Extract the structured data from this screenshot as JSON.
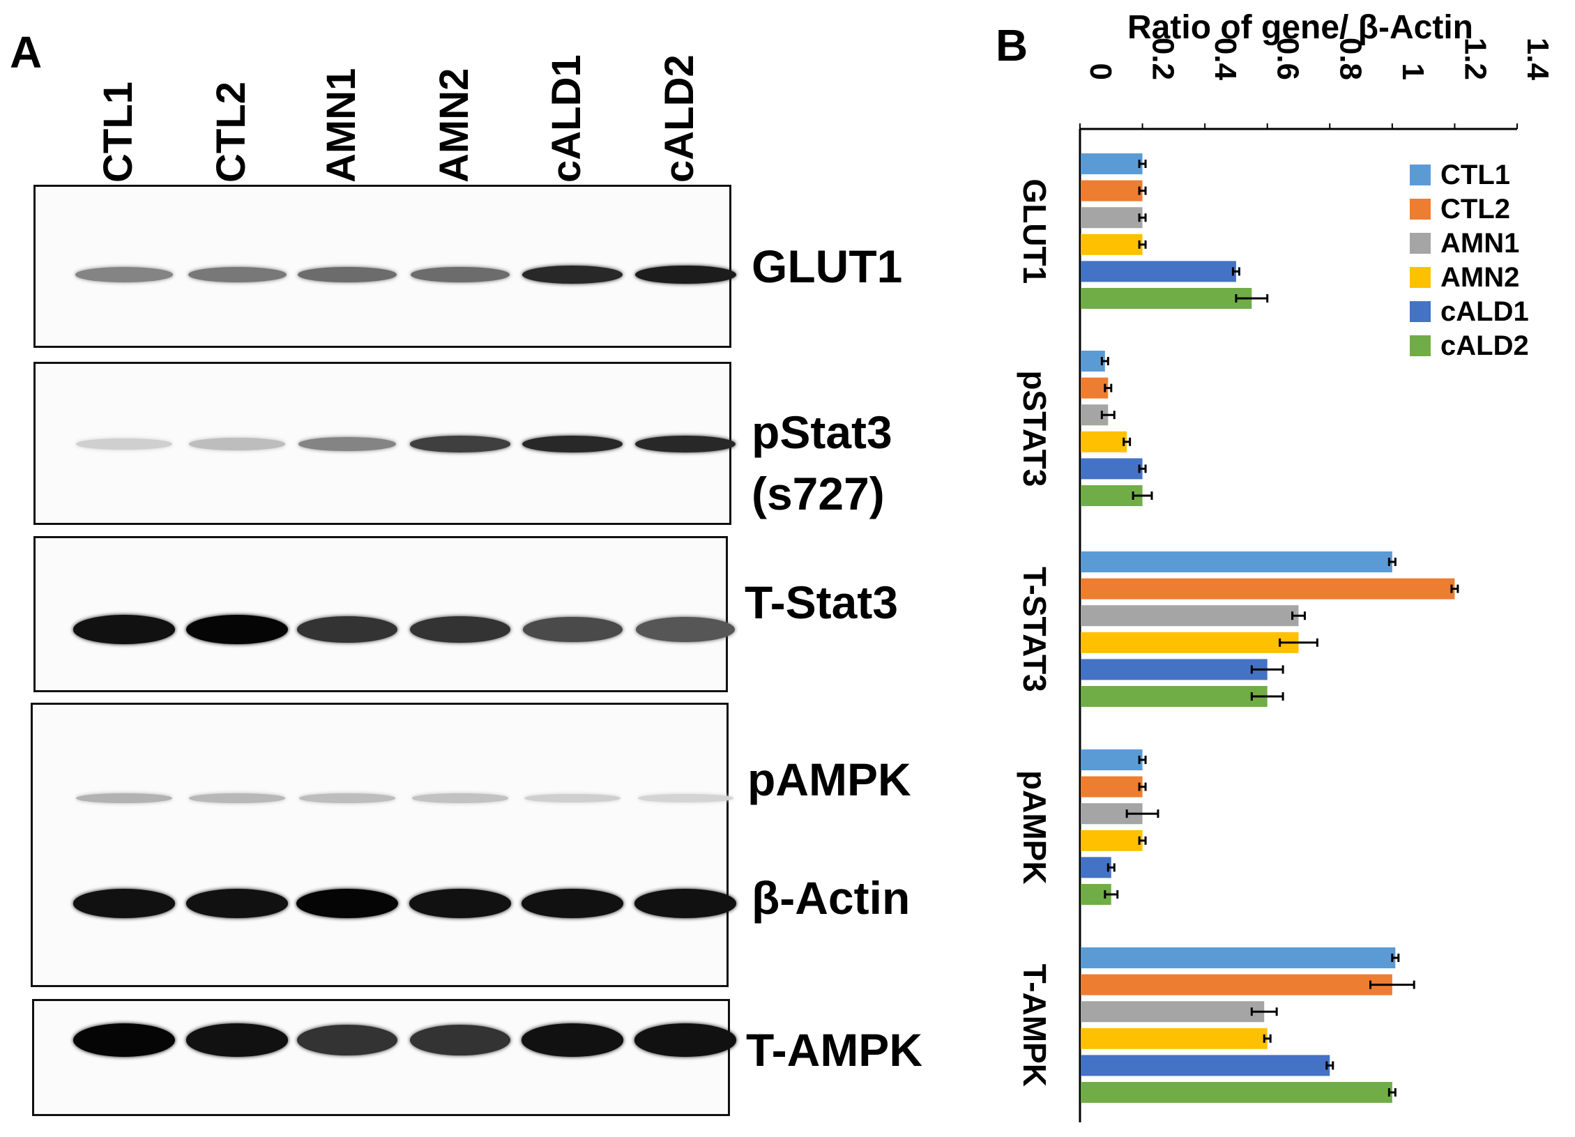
{
  "panels": {
    "a": "A",
    "b": "B"
  },
  "blot": {
    "lanes": [
      "CTL1",
      "CTL2",
      "AMN1",
      "AMN2",
      "cALD1",
      "cALD2"
    ],
    "labels": {
      "glut1": "GLUT1",
      "pstat3": "pStat3",
      "pstat3_site": "(s727)",
      "tstat3": "T-Stat3",
      "pampk": "pAMPK",
      "actin": "β-Actin",
      "tampk": "T-AMPK"
    },
    "band_intensity": {
      "glut1": [
        0.45,
        0.5,
        0.55,
        0.55,
        0.85,
        0.9
      ],
      "pstat3": [
        0.12,
        0.2,
        0.45,
        0.75,
        0.85,
        0.85
      ],
      "tstat3": [
        0.95,
        1.0,
        0.8,
        0.8,
        0.7,
        0.65
      ],
      "pampk": [
        0.25,
        0.22,
        0.2,
        0.18,
        0.12,
        0.1
      ],
      "actin": [
        0.95,
        0.95,
        1.0,
        0.95,
        0.95,
        0.95
      ],
      "tampk": [
        1.0,
        0.95,
        0.8,
        0.8,
        0.95,
        0.95
      ]
    }
  },
  "chart_data": {
    "type": "bar",
    "orientation": "horizontal",
    "title": "Ratio of gene/ β-Actin",
    "xlim": [
      0,
      1.4
    ],
    "ticks": [
      "0",
      "0.2",
      "0.4",
      "0.6",
      "0.8",
      "1",
      "1.2",
      "1.4"
    ],
    "categories": [
      "GLUT1",
      "pSTAT3",
      "T-STAT3",
      "pAMPK",
      "T-AMPK"
    ],
    "legend_position": "top-right",
    "series": [
      {
        "name": "CTL1",
        "color": "#5b9bd5",
        "values": [
          0.2,
          0.08,
          1.0,
          0.2,
          1.01
        ],
        "errors": [
          0.01,
          0.01,
          0.01,
          0.01,
          0.01
        ]
      },
      {
        "name": "CTL2",
        "color": "#ed7d31",
        "values": [
          0.2,
          0.09,
          1.2,
          0.2,
          1.0
        ],
        "errors": [
          0.01,
          0.01,
          0.01,
          0.01,
          0.07
        ]
      },
      {
        "name": "AMN1",
        "color": "#a5a5a5",
        "values": [
          0.2,
          0.09,
          0.7,
          0.2,
          0.59
        ],
        "errors": [
          0.01,
          0.02,
          0.02,
          0.05,
          0.04
        ]
      },
      {
        "name": "AMN2",
        "color": "#ffc000",
        "values": [
          0.2,
          0.15,
          0.7,
          0.2,
          0.6
        ],
        "errors": [
          0.01,
          0.01,
          0.06,
          0.01,
          0.01
        ]
      },
      {
        "name": "cALD1",
        "color": "#4472c4",
        "values": [
          0.5,
          0.2,
          0.6,
          0.1,
          0.8
        ],
        "errors": [
          0.01,
          0.01,
          0.05,
          0.01,
          0.01
        ]
      },
      {
        "name": "cALD2",
        "color": "#70ad47",
        "values": [
          0.55,
          0.2,
          0.6,
          0.1,
          1.0
        ],
        "errors": [
          0.05,
          0.03,
          0.05,
          0.02,
          0.01
        ]
      }
    ]
  }
}
